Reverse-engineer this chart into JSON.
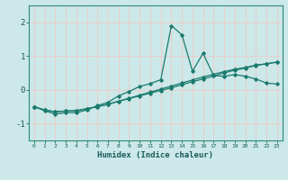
{
  "xlabel": "Humidex (Indice chaleur)",
  "bg_color": "#cce8e8",
  "line_color": "#1a7a6e",
  "grid_color": "#f0c8c8",
  "xlim": [
    -0.5,
    23.5
  ],
  "ylim": [
    -1.5,
    2.5
  ],
  "yticks": [
    -1,
    0,
    1,
    2
  ],
  "xticks": [
    0,
    1,
    2,
    3,
    4,
    5,
    6,
    7,
    8,
    9,
    10,
    11,
    12,
    13,
    14,
    15,
    16,
    17,
    18,
    19,
    20,
    21,
    22,
    23
  ],
  "line1_x": [
    0,
    1,
    2,
    3,
    4,
    5,
    6,
    7,
    8,
    9,
    10,
    11,
    12,
    13,
    14,
    15,
    16,
    17,
    18,
    19,
    20,
    21,
    22,
    23
  ],
  "line1_y": [
    -0.5,
    -0.62,
    -0.72,
    -0.68,
    -0.68,
    -0.6,
    -0.47,
    -0.37,
    -0.18,
    -0.05,
    0.1,
    0.18,
    0.3,
    1.9,
    1.63,
    0.55,
    1.08,
    0.42,
    0.4,
    0.45,
    0.4,
    0.32,
    0.2,
    0.17
  ],
  "line2_x": [
    0,
    1,
    2,
    3,
    4,
    5,
    6,
    7,
    8,
    9,
    10,
    11,
    12,
    13,
    14,
    15,
    16,
    17,
    18,
    19,
    20,
    21,
    22,
    23
  ],
  "line2_y": [
    -0.5,
    -0.6,
    -0.65,
    -0.63,
    -0.62,
    -0.56,
    -0.5,
    -0.43,
    -0.34,
    -0.25,
    -0.16,
    -0.07,
    0.02,
    0.11,
    0.2,
    0.29,
    0.38,
    0.46,
    0.54,
    0.61,
    0.66,
    0.73,
    0.77,
    0.82
  ],
  "line3_x": [
    0,
    1,
    2,
    3,
    4,
    5,
    6,
    7,
    8,
    9,
    10,
    11,
    12,
    13,
    14,
    15,
    16,
    17,
    18,
    19,
    20,
    21,
    22,
    23
  ],
  "line3_y": [
    -0.5,
    -0.6,
    -0.65,
    -0.63,
    -0.62,
    -0.56,
    -0.5,
    -0.43,
    -0.34,
    -0.26,
    -0.18,
    -0.1,
    -0.02,
    0.06,
    0.15,
    0.24,
    0.32,
    0.41,
    0.5,
    0.58,
    0.64,
    0.72,
    0.77,
    0.82
  ]
}
